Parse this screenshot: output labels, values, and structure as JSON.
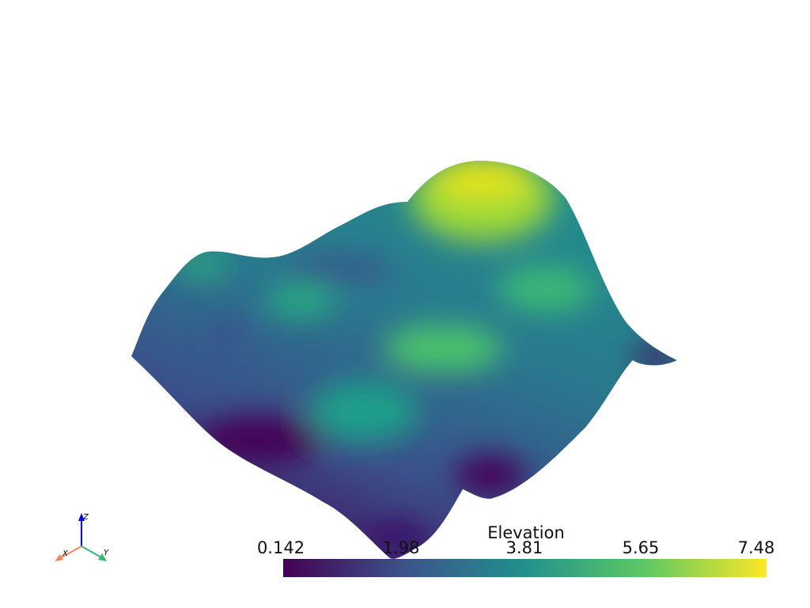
{
  "scene": {
    "type": "3d-surface",
    "background": "#ffffff",
    "colormap": "viridis",
    "colormap_stops": [
      "#440154",
      "#3b528b",
      "#21918c",
      "#5ec962",
      "#fde725"
    ]
  },
  "scalar_bar": {
    "title": "Elevation",
    "range": [
      0.142,
      7.48
    ],
    "ticks": [
      "0.142",
      "1.98",
      "3.81",
      "5.65",
      "7.48"
    ]
  },
  "axes_widget": {
    "x_label": "X",
    "y_label": "Y",
    "z_label": "Z",
    "x_color": "#f4845f",
    "y_color": "#3cb371",
    "z_color": "#0000ff"
  }
}
